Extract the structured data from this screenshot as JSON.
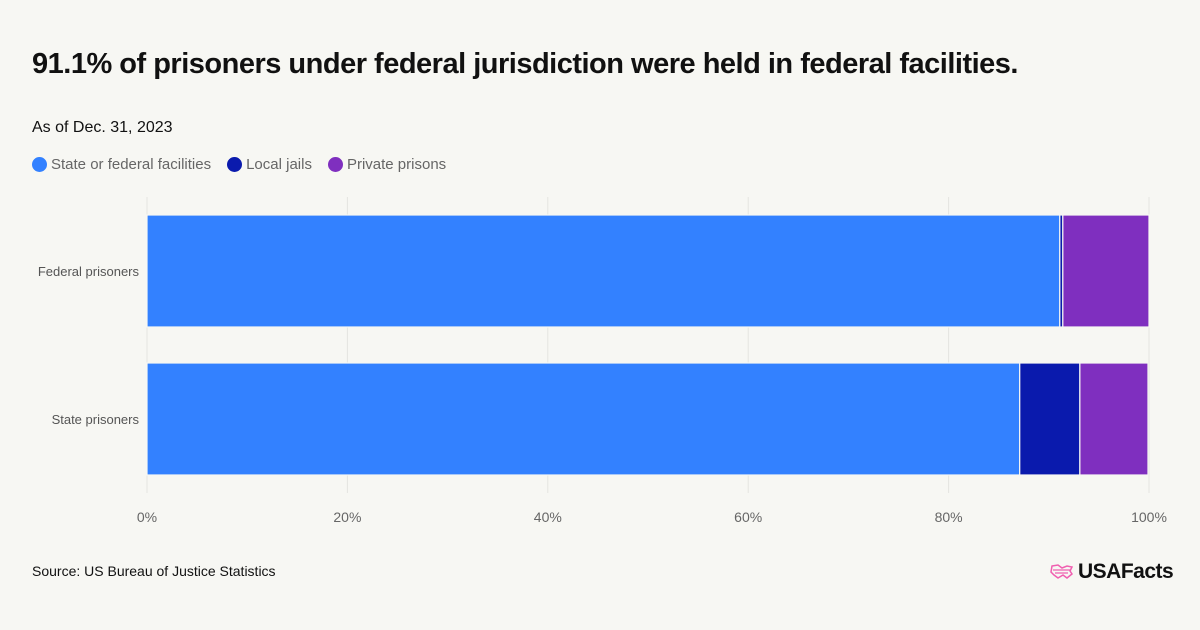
{
  "title": "91.1% of prisoners under federal jurisdiction were held in federal facilities.",
  "subtitle": "As of Dec. 31, 2023",
  "source": "Source: US Bureau of Justice Statistics",
  "logo": "USAFacts",
  "chart_data": {
    "type": "bar",
    "orientation": "horizontal",
    "stacked": true,
    "categories": [
      "Federal prisoners",
      "State prisoners"
    ],
    "series": [
      {
        "name": "State or federal facilities",
        "color": "#3381ff",
        "values": [
          91.1,
          87.1
        ]
      },
      {
        "name": "Local jails",
        "color": "#0a1aad",
        "values": [
          0.3,
          6.0
        ]
      },
      {
        "name": "Private prisons",
        "color": "#7f2fbf",
        "values": [
          8.6,
          6.8
        ]
      }
    ],
    "xlim": [
      0,
      100
    ],
    "xticks": [
      "0%",
      "20%",
      "40%",
      "60%",
      "80%",
      "100%"
    ],
    "grid": true,
    "legend": "top-left"
  }
}
